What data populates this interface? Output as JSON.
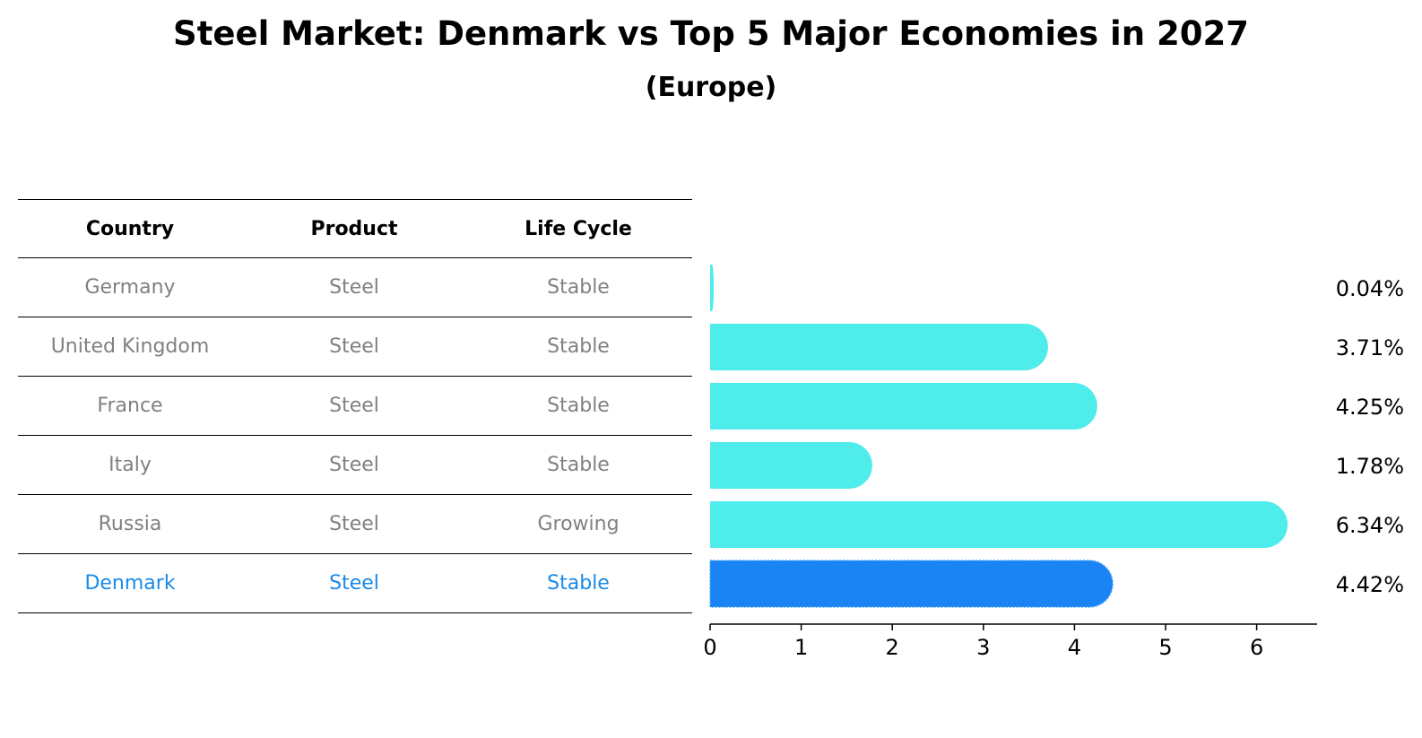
{
  "chart_data": {
    "type": "bar",
    "orientation": "horizontal",
    "title": "Steel Market: Denmark vs Top 5 Major Economies in 2027",
    "subtitle": "(Europe)",
    "categories": [
      "Germany",
      "United Kingdom",
      "France",
      "Italy",
      "Russia",
      "Denmark"
    ],
    "values": [
      0.04,
      3.71,
      4.25,
      1.78,
      6.34,
      4.42
    ],
    "value_labels": [
      "0.04%",
      "3.71%",
      "4.25%",
      "1.78%",
      "6.34%",
      "4.42%"
    ],
    "highlight": "Denmark",
    "xlim": [
      0,
      6.34
    ],
    "xticks": [
      "0",
      "1",
      "2",
      "3",
      "4",
      "5",
      "6"
    ],
    "grid": false,
    "colors": {
      "bar": "#4eeceb",
      "highlight_bar": "#1a84f5",
      "highlight_text": "#1a8ae8",
      "muted_text": "#808080"
    }
  },
  "table": {
    "headers": [
      "Country",
      "Product",
      "Life Cycle"
    ],
    "rows": [
      {
        "country": "Germany",
        "product": "Steel",
        "life_cycle": "Stable"
      },
      {
        "country": "United Kingdom",
        "product": "Steel",
        "life_cycle": "Stable"
      },
      {
        "country": "France",
        "product": "Steel",
        "life_cycle": "Stable"
      },
      {
        "country": "Italy",
        "product": "Steel",
        "life_cycle": "Stable"
      },
      {
        "country": "Russia",
        "product": "Steel",
        "life_cycle": "Growing"
      },
      {
        "country": "Denmark",
        "product": "Steel",
        "life_cycle": "Stable"
      }
    ]
  }
}
